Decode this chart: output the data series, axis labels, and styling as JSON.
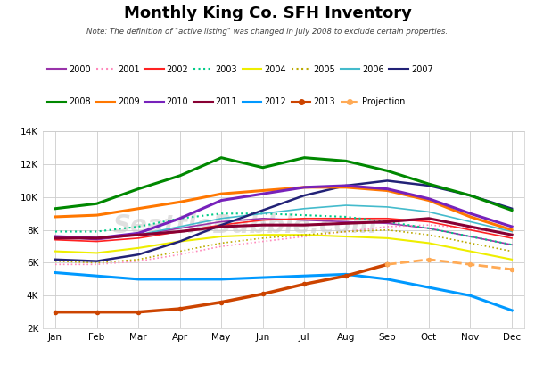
{
  "title": "Monthly King Co. SFH Inventory",
  "subtitle": "Note: The definition of \"active listing\" was changed in July 2008 to exclude certain properties.",
  "months": [
    "Jan",
    "Feb",
    "Mar",
    "Apr",
    "May",
    "Jun",
    "Jul",
    "Aug",
    "Sep",
    "Oct",
    "Nov",
    "Dec"
  ],
  "series": {
    "2000": {
      "color": "#9933AA",
      "ls": "-",
      "lw": 1.2,
      "marker": null,
      "data": [
        7600,
        7400,
        7700,
        8100,
        8500,
        8700,
        8600,
        8500,
        8400,
        8100,
        7600,
        7100
      ]
    },
    "2001": {
      "color": "#FF88BB",
      "ls": "dotted",
      "lw": 1.2,
      "marker": null,
      "data": [
        5900,
        5900,
        6100,
        6500,
        7000,
        7300,
        7600,
        7900,
        8200,
        8300,
        8100,
        7700
      ]
    },
    "2002": {
      "color": "#FF2222",
      "ls": "-",
      "lw": 1.2,
      "marker": null,
      "data": [
        7400,
        7300,
        7500,
        7900,
        8300,
        8600,
        8700,
        8700,
        8700,
        8500,
        8000,
        7500
      ]
    },
    "2003": {
      "color": "#00CC88",
      "ls": "dotted",
      "lw": 1.5,
      "marker": null,
      "data": [
        7900,
        7900,
        8200,
        8700,
        9000,
        9000,
        8900,
        8800,
        8500,
        8100,
        7600,
        7100
      ]
    },
    "2004": {
      "color": "#EEEE00",
      "ls": "-",
      "lw": 1.5,
      "marker": null,
      "data": [
        6700,
        6600,
        6900,
        7300,
        7600,
        7700,
        7700,
        7600,
        7500,
        7200,
        6700,
        6200
      ]
    },
    "2005": {
      "color": "#BBAA00",
      "ls": "dotted",
      "lw": 1.2,
      "marker": null,
      "data": [
        6100,
        6000,
        6200,
        6700,
        7200,
        7500,
        7700,
        7900,
        8000,
        7700,
        7200,
        6700
      ]
    },
    "2006": {
      "color": "#44BBCC",
      "ls": "-",
      "lw": 1.2,
      "marker": null,
      "data": [
        7600,
        7500,
        7700,
        8200,
        8700,
        9000,
        9300,
        9500,
        9400,
        9100,
        8500,
        7900
      ]
    },
    "2007": {
      "color": "#222277",
      "ls": "-",
      "lw": 1.8,
      "marker": null,
      "data": [
        6200,
        6100,
        6500,
        7300,
        8300,
        9200,
        10100,
        10700,
        11000,
        10700,
        10100,
        9300
      ]
    },
    "2008": {
      "color": "#008800",
      "ls": "-",
      "lw": 2.2,
      "marker": null,
      "data": [
        9300,
        9600,
        10500,
        11300,
        12400,
        11800,
        12400,
        12200,
        11600,
        10800,
        10100,
        9200
      ]
    },
    "2009": {
      "color": "#FF7700",
      "ls": "-",
      "lw": 2.2,
      "marker": null,
      "data": [
        8800,
        8900,
        9300,
        9700,
        10200,
        10400,
        10600,
        10600,
        10400,
        9800,
        8800,
        8000
      ]
    },
    "2010": {
      "color": "#7722BB",
      "ls": "-",
      "lw": 2.2,
      "marker": null,
      "data": [
        7600,
        7500,
        7800,
        8700,
        9800,
        10200,
        10600,
        10700,
        10500,
        9900,
        9000,
        8200
      ]
    },
    "2011": {
      "color": "#880033",
      "ls": "-",
      "lw": 2.2,
      "marker": null,
      "data": [
        7500,
        7500,
        7700,
        7900,
        8200,
        8300,
        8300,
        8400,
        8500,
        8700,
        8200,
        7700
      ]
    },
    "2012": {
      "color": "#0099FF",
      "ls": "-",
      "lw": 2.2,
      "marker": null,
      "data": [
        5400,
        5200,
        5000,
        5000,
        5000,
        5100,
        5200,
        5300,
        5000,
        4500,
        4000,
        3100
      ]
    },
    "2013": {
      "color": "#CC4400",
      "ls": "-",
      "lw": 2.5,
      "marker": "o",
      "data": [
        3000,
        3000,
        3000,
        3200,
        3600,
        4100,
        4700,
        5200,
        5900,
        null,
        null,
        null
      ]
    },
    "Projection": {
      "color": "#FFAA55",
      "ls": "dashed",
      "lw": 2.0,
      "marker": "o",
      "data": [
        null,
        null,
        null,
        null,
        null,
        null,
        null,
        null,
        5900,
        6200,
        5900,
        5600
      ]
    }
  },
  "ylim": [
    2000,
    14000
  ],
  "yticks": [
    2000,
    4000,
    6000,
    8000,
    10000,
    12000,
    14000
  ],
  "watermark": "SeattleBubble.com",
  "legend_row1": [
    "2000",
    "2001",
    "2002",
    "2003",
    "2004",
    "2005",
    "2006",
    "2007"
  ],
  "legend_row2": [
    "2008",
    "2009",
    "2010",
    "2011",
    "2012",
    "2013",
    "Projection"
  ]
}
